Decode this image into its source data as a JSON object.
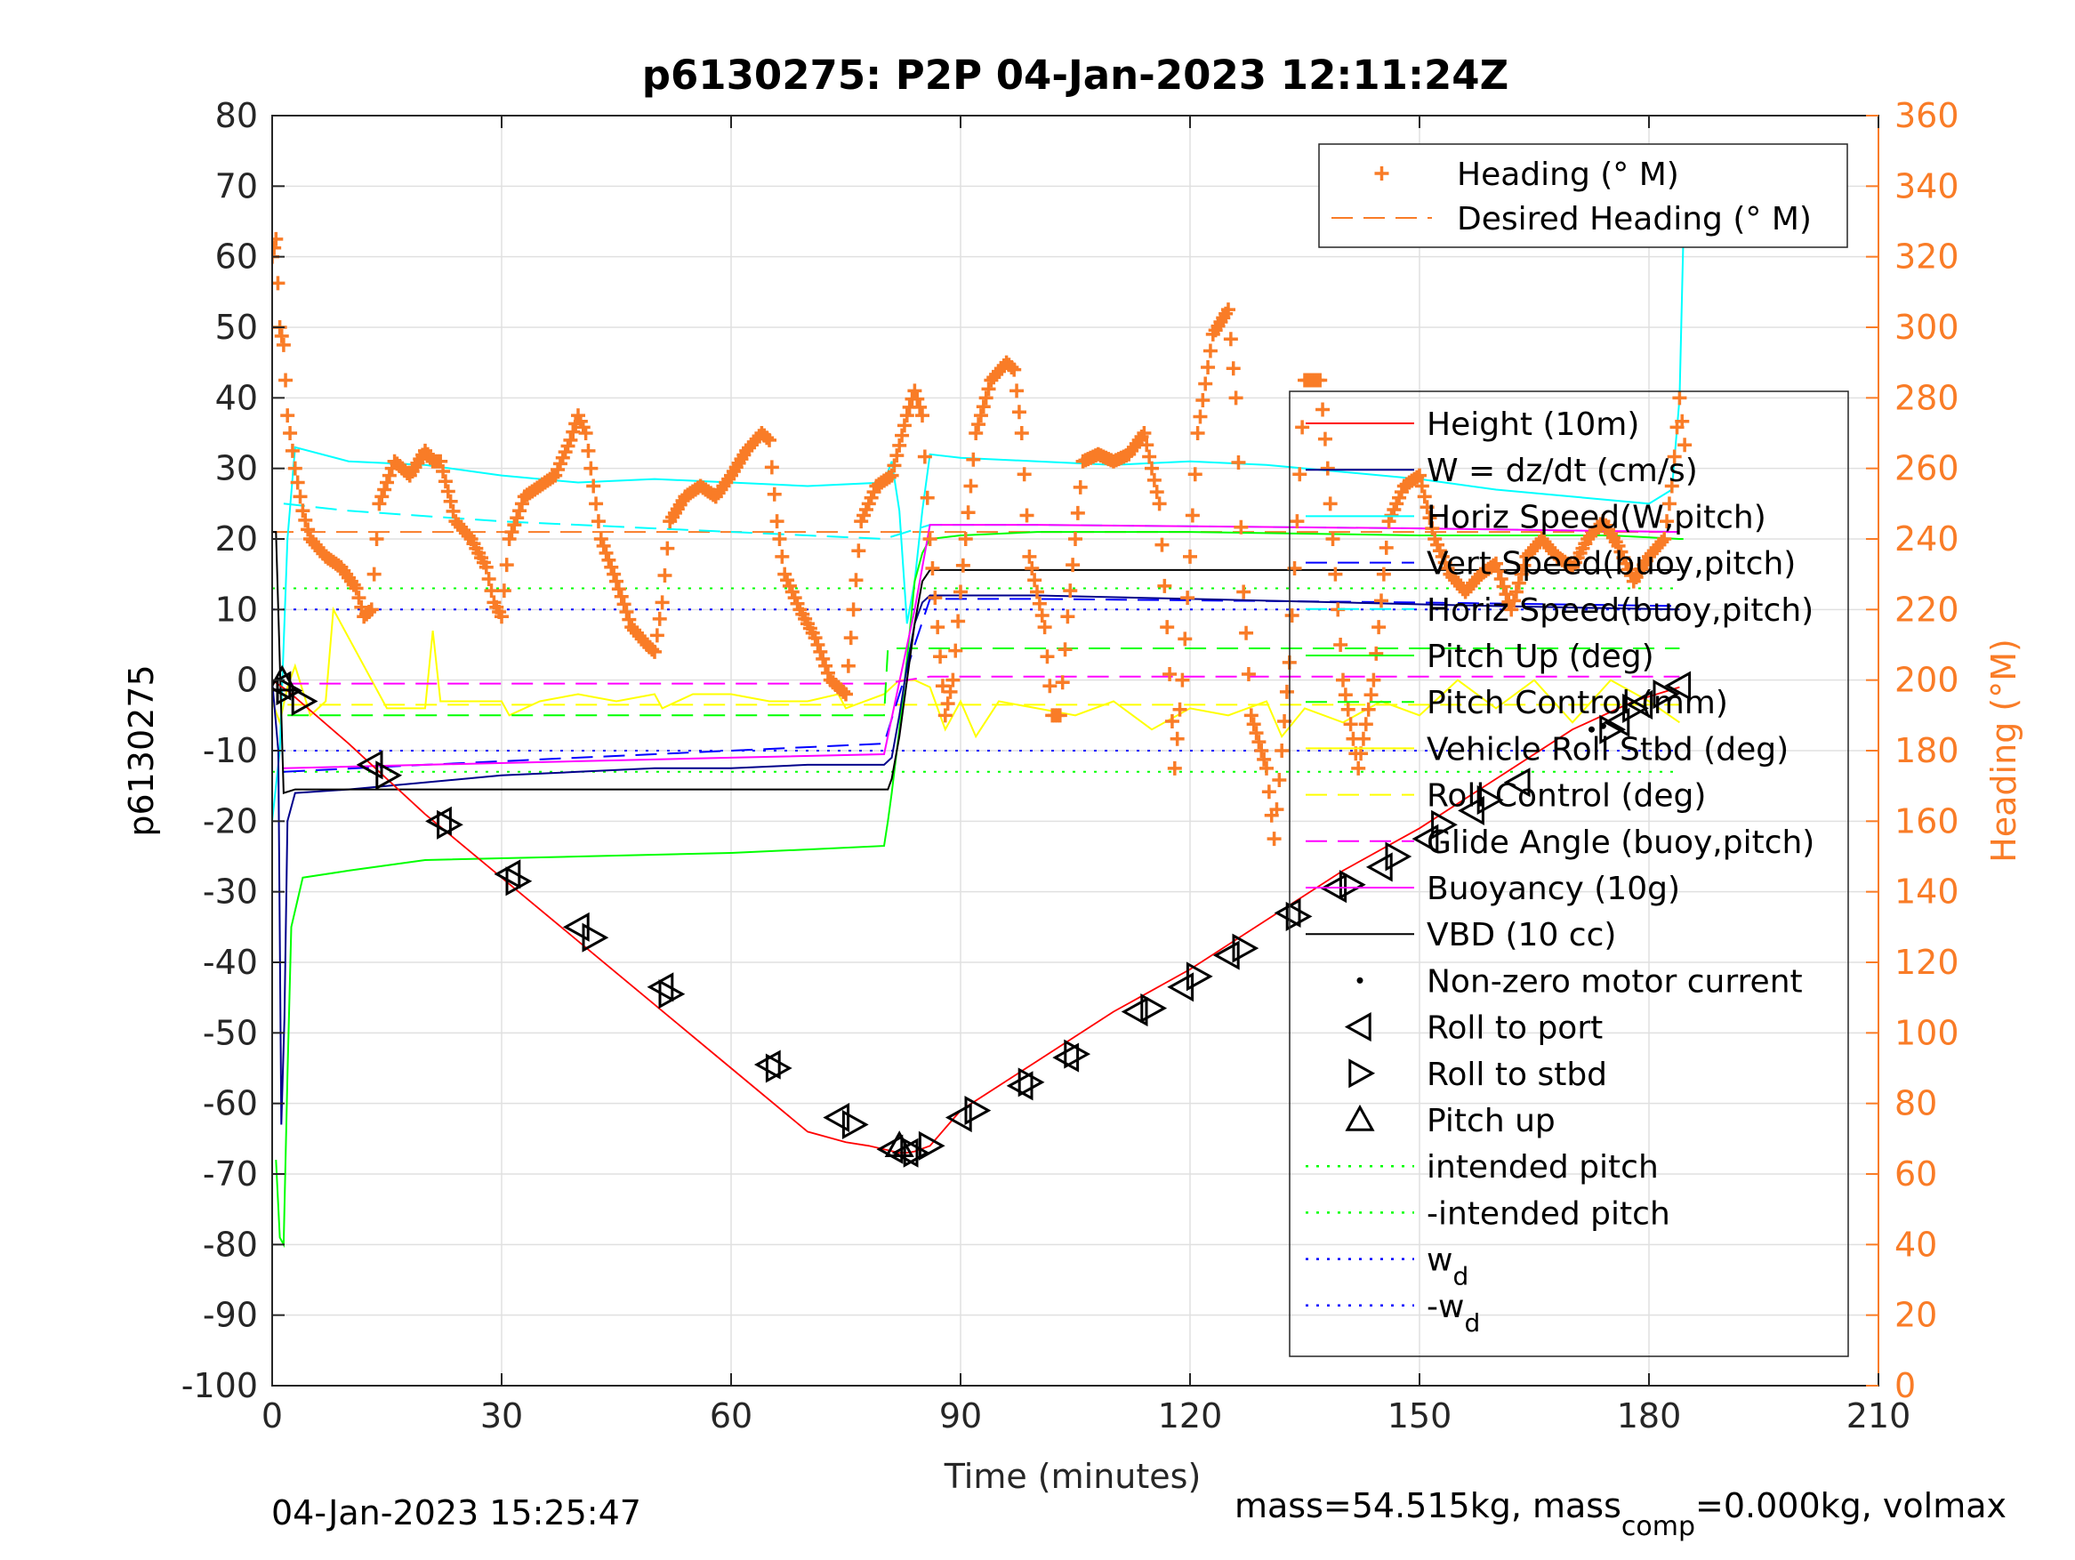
{
  "chart_data": {
    "type": "line",
    "title": "p6130275: P2P 04-Jan-2023 12:11:24Z",
    "xlabel": "Time (minutes)",
    "ylabel_left": "p6130275",
    "ylabel_right": "Heading (°M)",
    "xlim": [
      0,
      210
    ],
    "ylim_left": [
      -100,
      80
    ],
    "ylim_right": [
      0,
      360
    ],
    "x_ticks": [
      0,
      30,
      60,
      90,
      120,
      150,
      180,
      210
    ],
    "x_tick_labels": [
      "0",
      "30",
      "60",
      "90",
      "120",
      "150",
      "180",
      "210"
    ],
    "y_ticks_left": [
      -100,
      -90,
      -80,
      -70,
      -60,
      -50,
      -40,
      -30,
      -20,
      -10,
      0,
      10,
      20,
      30,
      40,
      50,
      60,
      70,
      80
    ],
    "y_tick_labels_left": [
      "-100",
      "-90",
      "-80",
      "-70",
      "-60",
      "-50",
      "-40",
      "-30",
      "-20",
      "-10",
      "0",
      "10",
      "20",
      "30",
      "40",
      "50",
      "60",
      "70",
      "80"
    ],
    "y_ticks_right": [
      0,
      20,
      40,
      60,
      80,
      100,
      120,
      140,
      160,
      180,
      200,
      220,
      240,
      260,
      280,
      300,
      320,
      340,
      360
    ],
    "y_tick_labels_right": [
      "0",
      "20",
      "40",
      "60",
      "80",
      "100",
      "120",
      "140",
      "160",
      "180",
      "200",
      "220",
      "240",
      "260",
      "280",
      "300",
      "320",
      "340",
      "360"
    ],
    "grid": true,
    "footer_left": "04-Jan-2023 15:25:47",
    "footer_right": {
      "a": "mass=54.515kg, mass",
      "sub": "comp",
      "b": "=0.000kg, volmax"
    },
    "colors": {
      "heading": "#f97c27",
      "height": "#ff0000",
      "w": "#00008b",
      "horiz_w": "#00ffff",
      "vert_buoy": "#0000ff",
      "horiz_buoy": "#00ffff",
      "pitch_up": "#00ff00",
      "pitch_control": "#00ff00",
      "roll": "#ffff00",
      "roll_control": "#ffff00",
      "glide": "#ff00ff",
      "buoyancy": "#ff00ff",
      "vbd": "#000000",
      "intended_pitch": "#00ff00",
      "wd": "#0000ff"
    },
    "legend_heading": {
      "placement": "top-right",
      "entries": [
        {
          "label": "Heading (° M)",
          "style": "plus"
        },
        {
          "label": "Desired Heading (° M)",
          "style": "dash"
        }
      ]
    },
    "legend_main": {
      "placement": "right",
      "entries": [
        {
          "label": "Height (10m)",
          "style": "line",
          "color": "height"
        },
        {
          "label": "W = dz/dt (cm/s)",
          "style": "line",
          "color": "w"
        },
        {
          "label": "Horiz Speed(W,pitch)",
          "style": "line",
          "color": "horiz_w"
        },
        {
          "label": "Vert Speed(buoy,pitch)",
          "style": "dash",
          "color": "vert_buoy"
        },
        {
          "label": "Horiz Speed(buoy,pitch)",
          "style": "dash",
          "color": "horiz_buoy"
        },
        {
          "label": "Pitch Up (deg)",
          "style": "line",
          "color": "pitch_up"
        },
        {
          "label": "Pitch Control (mm)",
          "style": "dash",
          "color": "pitch_control"
        },
        {
          "label": "Vehicle Roll Stbd (deg)",
          "style": "line",
          "color": "roll"
        },
        {
          "label": "Roll Control (deg)",
          "style": "dash",
          "color": "roll_control"
        },
        {
          "label": "Glide Angle (buoy,pitch)",
          "style": "dash",
          "color": "glide"
        },
        {
          "label": "Buoyancy (10g)",
          "style": "line",
          "color": "buoyancy"
        },
        {
          "label": "VBD (10 cc)",
          "style": "line",
          "color": "vbd"
        },
        {
          "label": "Non-zero motor current",
          "style": "dot",
          "color": "vbd"
        },
        {
          "label": "Roll to port",
          "style": "tri-left",
          "color": "vbd"
        },
        {
          "label": "Roll to stbd",
          "style": "tri-right",
          "color": "vbd"
        },
        {
          "label": "Pitch up",
          "style": "tri-up",
          "color": "vbd"
        },
        {
          "label": "intended pitch",
          "style": "dot-line",
          "color": "intended_pitch"
        },
        {
          "label": "-intended pitch",
          "style": "dot-line",
          "color": "intended_pitch"
        },
        {
          "label": "w",
          "sub": "d",
          "style": "dot-line",
          "color": "wd"
        },
        {
          "label": "-w",
          "sub": "d",
          "style": "dot-line",
          "color": "wd"
        }
      ]
    },
    "series": [
      {
        "key": "height",
        "axis": "left",
        "style": "line",
        "x": [
          0,
          2,
          10,
          20,
          30,
          40,
          50,
          60,
          70,
          75,
          78,
          80,
          82,
          83,
          84,
          86,
          90,
          100,
          110,
          120,
          130,
          140,
          150,
          160,
          170,
          178,
          184
        ],
        "y": [
          0,
          -1.5,
          -9,
          -19,
          -28,
          -37,
          -46,
          -55,
          -64,
          -65.5,
          -66,
          -66.5,
          -67,
          -67,
          -66.8,
          -66,
          -61,
          -54,
          -47,
          -41,
          -34,
          -27,
          -21,
          -14,
          -7,
          -3,
          -1
        ]
      },
      {
        "key": "vbd",
        "axis": "left",
        "style": "line",
        "x": [
          0,
          0.5,
          1.5,
          3,
          50,
          80.5,
          81,
          82,
          83,
          84,
          85,
          86,
          100,
          150,
          184
        ],
        "y": [
          21,
          21,
          -16,
          -15.5,
          -15.5,
          -15.5,
          -14,
          -8,
          0,
          8,
          14,
          15.6,
          15.6,
          15.6,
          15.6
        ]
      },
      {
        "key": "buoyancy",
        "axis": "left",
        "style": "line",
        "x": [
          1.5,
          20,
          40,
          60,
          80,
          84,
          86,
          100,
          150,
          184
        ],
        "y": [
          -12.5,
          -12,
          -11.5,
          -11,
          -10.5,
          10,
          22,
          22,
          21.5,
          21
        ]
      },
      {
        "key": "pitch_up",
        "axis": "left",
        "style": "line",
        "x": [
          0.5,
          1,
          1.5,
          2,
          2.5,
          4,
          10,
          20,
          40,
          60,
          70,
          80,
          80.5,
          81,
          82,
          83,
          84,
          85,
          86,
          90,
          100,
          120,
          150,
          175,
          184,
          184.5
        ],
        "y": [
          -68,
          -79,
          -80,
          -56,
          -35,
          -28,
          -27,
          -25.5,
          -25,
          -24.5,
          -24,
          -23.5,
          -20,
          -16,
          -7,
          3,
          14,
          18,
          20,
          20.5,
          21,
          21,
          20.5,
          20.5,
          20,
          20
        ]
      },
      {
        "key": "horiz_w",
        "axis": "left",
        "style": "line",
        "x": [
          0,
          1,
          2,
          3,
          10,
          20,
          30,
          40,
          50,
          60,
          70,
          80,
          81,
          82,
          83,
          84,
          85,
          86,
          90,
          100,
          110,
          120,
          130,
          140,
          150,
          160,
          170,
          180,
          183,
          184,
          184.5
        ],
        "y": [
          -20,
          -10,
          20,
          33,
          31,
          30.5,
          29,
          28,
          28.5,
          28,
          27.5,
          28,
          31,
          24,
          8,
          14,
          24,
          32,
          31.5,
          31,
          30.5,
          31,
          30.5,
          29.5,
          28.5,
          27,
          26,
          25,
          27,
          40,
          63
        ]
      },
      {
        "key": "w",
        "axis": "left",
        "style": "line",
        "x": [
          0,
          0.8,
          1.2,
          1.6,
          2,
          3,
          10,
          20,
          30,
          40,
          50,
          60,
          70,
          80,
          81,
          82,
          83,
          84,
          85,
          86,
          90,
          100,
          120,
          140,
          160,
          184
        ],
        "y": [
          0,
          -10,
          -63,
          -48,
          -20,
          -16,
          -15.5,
          -14.5,
          -13.5,
          -13,
          -12.5,
          -12.5,
          -12,
          -12,
          -11,
          -5,
          2,
          8,
          11,
          12,
          12,
          12,
          11.5,
          11,
          10.5,
          10
        ]
      },
      {
        "key": "vert_buoy",
        "axis": "left",
        "style": "dash",
        "x": [
          1.5,
          20,
          40,
          60,
          80,
          84,
          86,
          100,
          150,
          184
        ],
        "y": [
          -13,
          -12,
          -11,
          -10,
          -9,
          5,
          11.5,
          11.5,
          11,
          10.5
        ]
      },
      {
        "key": "horiz_buoy",
        "axis": "left",
        "style": "dash",
        "x": [
          1.5,
          10,
          30,
          50,
          70,
          80,
          86,
          100,
          150,
          184
        ],
        "y": [
          25,
          24,
          22.5,
          21.5,
          20.5,
          20,
          22,
          22,
          21.5,
          21
        ]
      },
      {
        "key": "pitch_control",
        "axis": "left",
        "style": "dash",
        "x": [
          2,
          80,
          80.5,
          86,
          184
        ],
        "y": [
          -5,
          -5,
          4.5,
          4.5,
          4.5
        ]
      },
      {
        "key": "roll",
        "axis": "left",
        "style": "line",
        "x": [
          0,
          1,
          2,
          3,
          5,
          7,
          8,
          15,
          20,
          21,
          22,
          30,
          31,
          35,
          40,
          45,
          50,
          51,
          55,
          60,
          65,
          70,
          74,
          75,
          80,
          82,
          84,
          86,
          88,
          90,
          92,
          95,
          100,
          105,
          110,
          115,
          120,
          125,
          130,
          132,
          135,
          140,
          145,
          150,
          155,
          160,
          165,
          170,
          175,
          180,
          184
        ],
        "y": [
          -3,
          -6,
          -1,
          2,
          -5,
          -3,
          10,
          -4,
          -4,
          7,
          -3,
          -3,
          -5,
          -3,
          -2,
          -3,
          -2,
          -4,
          -2,
          -2,
          -3,
          -3,
          -2,
          -4,
          -2,
          0,
          0,
          -1,
          -7,
          -3,
          -8,
          -3,
          -4,
          -5,
          -3,
          -7,
          -4,
          -5,
          -3,
          -8,
          -4,
          -6,
          -3,
          -5,
          0,
          -4,
          0,
          -6,
          0,
          -3,
          -6
        ]
      },
      {
        "key": "roll_control",
        "axis": "left",
        "style": "dash",
        "x": [
          2,
          184
        ],
        "y": [
          -3.5,
          -3.5
        ]
      },
      {
        "key": "glide",
        "axis": "left",
        "style": "dash",
        "x": [
          2,
          80,
          86,
          184
        ],
        "y": [
          -0.5,
          -0.5,
          0.5,
          0.5
        ]
      },
      {
        "key": "intended_pitch",
        "axis": "left",
        "style": "dotted",
        "x": [
          0,
          184
        ],
        "y": [
          13,
          13
        ]
      },
      {
        "key": "intended_pitch",
        "axis": "left",
        "style": "dotted",
        "x": [
          0,
          184
        ],
        "y": [
          -13,
          -13
        ]
      },
      {
        "key": "wd",
        "axis": "left",
        "style": "dotted",
        "x": [
          0,
          184
        ],
        "y": [
          10,
          10
        ]
      },
      {
        "key": "wd",
        "axis": "left",
        "style": "dotted",
        "x": [
          0,
          184
        ],
        "y": [
          -10,
          -10
        ]
      },
      {
        "key": "desired_heading",
        "axis": "right",
        "style": "dash",
        "x": [
          0,
          184
        ],
        "y": [
          242,
          242
        ]
      },
      {
        "key": "heading",
        "axis": "right",
        "style": "plus",
        "x": [
          0,
          0.5,
          1,
          1.5,
          2,
          3,
          4,
          5,
          7,
          9,
          11,
          12,
          13,
          14,
          16,
          18,
          20,
          21,
          22,
          24,
          26,
          28,
          29,
          30,
          31,
          33,
          35,
          37,
          39,
          40,
          41,
          43,
          45,
          47,
          49,
          50,
          51,
          52,
          54,
          56,
          58,
          60,
          62,
          64,
          65,
          66,
          67,
          69,
          71,
          73,
          75,
          76,
          77,
          79,
          81,
          83,
          84,
          85,
          86,
          87,
          88,
          89,
          90,
          92,
          94,
          96,
          97,
          98,
          99,
          101,
          102,
          103,
          104,
          106,
          108,
          110,
          112,
          114,
          116,
          117,
          118,
          119,
          121,
          123,
          125,
          126,
          127,
          128,
          130,
          131,
          133,
          135,
          137,
          138,
          140,
          142,
          144,
          146,
          148,
          150,
          152,
          154,
          156,
          158,
          160,
          162,
          164,
          166,
          168,
          170,
          172,
          174,
          176,
          178,
          180,
          182,
          183,
          184,
          185
        ],
        "y": [
          320,
          325,
          300,
          295,
          275,
          260,
          248,
          240,
          235,
          232,
          226,
          218,
          220,
          250,
          262,
          258,
          265,
          262,
          262,
          245,
          240,
          232,
          222,
          218,
          240,
          252,
          255,
          258,
          268,
          275,
          270,
          240,
          228,
          215,
          210,
          208,
          222,
          245,
          252,
          255,
          252,
          258,
          265,
          270,
          268,
          245,
          230,
          220,
          212,
          200,
          196,
          220,
          245,
          255,
          258,
          275,
          282,
          275,
          240,
          215,
          190,
          200,
          225,
          270,
          285,
          290,
          288,
          270,
          235,
          215,
          190,
          190,
          218,
          262,
          264,
          262,
          264,
          270,
          250,
          215,
          175,
          200,
          270,
          298,
          305,
          280,
          225,
          190,
          175,
          155,
          205,
          285,
          285,
          260,
          200,
          175,
          200,
          245,
          255,
          258,
          240,
          230,
          225,
          230,
          233,
          220,
          235,
          240,
          235,
          232,
          240,
          245,
          238,
          228,
          235,
          240,
          255,
          280,
          260
        ]
      },
      {
        "key": "motor",
        "axis": "left",
        "style": "dot",
        "x": [
          172.5,
          174
        ],
        "y": [
          -7,
          -6.5
        ]
      }
    ],
    "markers": {
      "roll_to_port": {
        "x": [
          1,
          13,
          22,
          31,
          40,
          51,
          65,
          74,
          81,
          83,
          90,
          98,
          104,
          113,
          119,
          125,
          133,
          139,
          145,
          151,
          157,
          163,
          176,
          179,
          184
        ],
        "y": [
          -0.8,
          -12,
          -20,
          -27.5,
          -35,
          -43.5,
          -54.5,
          -62,
          -66.5,
          -67,
          -62,
          -57.5,
          -53.5,
          -47,
          -43.5,
          -39,
          -33,
          -29.5,
          -26.5,
          -22.5,
          -18.5,
          -14.5,
          -6,
          -3.5,
          -0.8
        ]
      },
      "roll_to_stbd": {
        "x": [
          2,
          4,
          15,
          23,
          32,
          42,
          52,
          66,
          76,
          84,
          86,
          92,
          99,
          105,
          115,
          121,
          127,
          134,
          141,
          147,
          153,
          159,
          175,
          178,
          182
        ],
        "y": [
          -1.5,
          -3,
          -13.5,
          -20.5,
          -28.5,
          -36.5,
          -44.5,
          -55,
          -63,
          -67,
          -66,
          -61,
          -57,
          -53,
          -46.5,
          -42,
          -38,
          -33.5,
          -29,
          -25,
          -20.5,
          -17,
          -7,
          -4,
          -2
        ]
      },
      "pitch_up": {
        "x": [
          1.3,
          82
        ],
        "y": [
          0,
          -66
        ]
      }
    }
  }
}
